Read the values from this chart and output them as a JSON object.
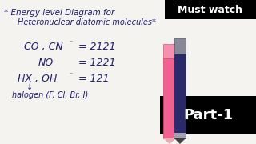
{
  "bg_color": "#f5f3ef",
  "text_color": "#1a1a6e",
  "title_line1": "* Energy level Diagram for",
  "title_line2": "Heteronuclear diatomic molecules*",
  "row1_main": "CO , CN",
  "row1_sup": "⁻",
  "row1_val": "= 2121",
  "row2_main": "NO",
  "row2_val": "= 1221",
  "row3_main": "HX , OH",
  "row3_sup": "⁻",
  "row3_val": "= 121",
  "row4": "halogen (F, Cl, Br, I)",
  "must_watch_text": "Must watch",
  "part1_text": "Part-1",
  "pen_pink_body": "#f06090",
  "pen_pink_cap": "#f590b0",
  "pen_dark_body": "#2a2a6a",
  "pen_dark_cap": "#3a3a8a",
  "pen_tip_dark": "#404040",
  "box_color": "#000000",
  "box_text_color": "#ffffff"
}
